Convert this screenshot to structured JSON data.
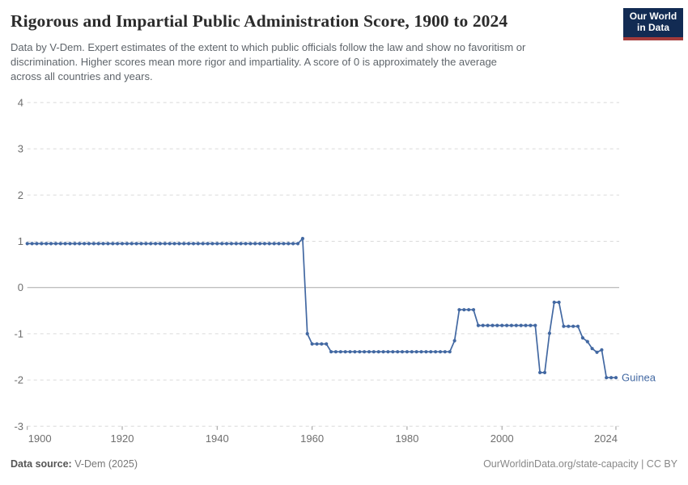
{
  "header": {
    "title": "Rigorous and Impartial Public Administration Score, 1900 to 2024",
    "subtitle_lines": [
      "Data by V-Dem. Expert estimates of the extent to which public officials follow the law and show no favoritism or",
      "discrimination. Higher scores mean more rigor and impartiality. A score of 0 is approximately the average",
      "across all countries and years."
    ],
    "logo": {
      "line1": "Our World",
      "line2": "in Data"
    }
  },
  "footer": {
    "source_label": "Data source:",
    "source_value": " V-Dem (2025)",
    "license": "OurWorldinData.org/state-capacity | CC BY"
  },
  "colors": {
    "line": "#4268a2",
    "entity_label": "#4268a2",
    "grid": "#dadada",
    "zero_line": "#a8a8a8",
    "axis_text": "#6e6e6e",
    "tick_mark": "#999999",
    "logo_bg": "#122b53",
    "logo_accent": "#a33b3b"
  },
  "chart_data": {
    "type": "line",
    "entity": "Guinea",
    "title": "Rigorous and Impartial Public Administration Score",
    "xlabel": "",
    "ylabel": "",
    "xlim": [
      1900,
      2024
    ],
    "ylim": [
      -3,
      4
    ],
    "yticks": [
      4,
      3,
      2,
      1,
      0,
      -1,
      -2,
      -3
    ],
    "xticks": [
      1900,
      1920,
      1940,
      1960,
      1980,
      2000,
      2024
    ],
    "grid": "horizontal-dashed",
    "legend_position": "end-of-line",
    "segments_format": "[startYear, endYear, value]",
    "segments": [
      [
        1900,
        1957,
        0.95
      ],
      [
        1958,
        1958,
        1.06
      ],
      [
        1959,
        1959,
        -1.0
      ],
      [
        1960,
        1963,
        -1.22
      ],
      [
        1964,
        1989,
        -1.39
      ],
      [
        1990,
        1990,
        -1.15
      ],
      [
        1991,
        1994,
        -0.48
      ],
      [
        1995,
        2007,
        -0.82
      ],
      [
        2008,
        2009,
        -1.84
      ],
      [
        2010,
        2010,
        -0.99
      ],
      [
        2011,
        2012,
        -0.32
      ],
      [
        2013,
        2016,
        -0.84
      ],
      [
        2017,
        2017,
        -1.09
      ],
      [
        2018,
        2018,
        -1.17
      ],
      [
        2019,
        2019,
        -1.32
      ],
      [
        2020,
        2020,
        -1.4
      ],
      [
        2021,
        2021,
        -1.35
      ],
      [
        2022,
        2024,
        -1.95
      ]
    ]
  }
}
